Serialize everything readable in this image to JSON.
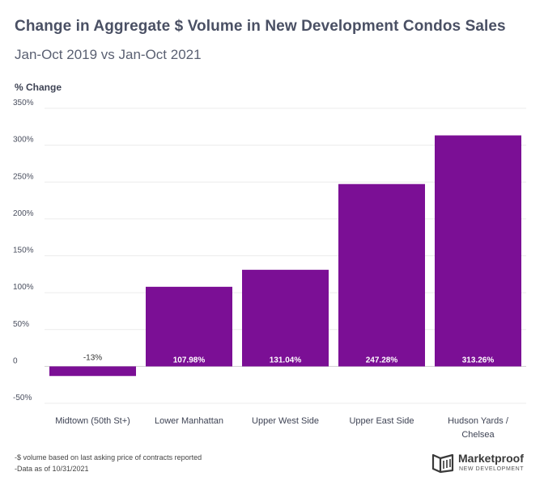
{
  "chart_data": {
    "type": "bar",
    "title": "Change in Aggregate $ Volume in New Development Condos Sales",
    "subtitle": "Jan-Oct 2019 vs Jan-Oct 2021",
    "xlabel": "",
    "ylabel": "% Change",
    "categories": [
      "Midtown (50th St+)",
      "Lower Manhattan",
      "Upper West Side",
      "Upper East Side",
      "Hudson Yards / Chelsea"
    ],
    "values": [
      -13,
      107.98,
      131.04,
      247.28,
      313.26
    ],
    "data_labels": [
      "-13%",
      "107.98%",
      "131.04%",
      "247.28%",
      "313.26%"
    ],
    "ylim": [
      -50,
      350
    ],
    "yticks": [
      350,
      300,
      250,
      200,
      150,
      100,
      50,
      0,
      -50
    ],
    "ytick_labels": [
      "350%",
      "300%",
      "250%",
      "200%",
      "150%",
      "100%",
      "50%",
      "0",
      "-50%"
    ],
    "grid": true,
    "bar_color": "#7b0f95"
  },
  "footnotes": [
    "-$ volume based on last asking price of contracts reported",
    "-Data as of 10/31/2021"
  ],
  "logo": {
    "name": "Marketproof",
    "tagline": "NEW DEVELOPMENT"
  }
}
